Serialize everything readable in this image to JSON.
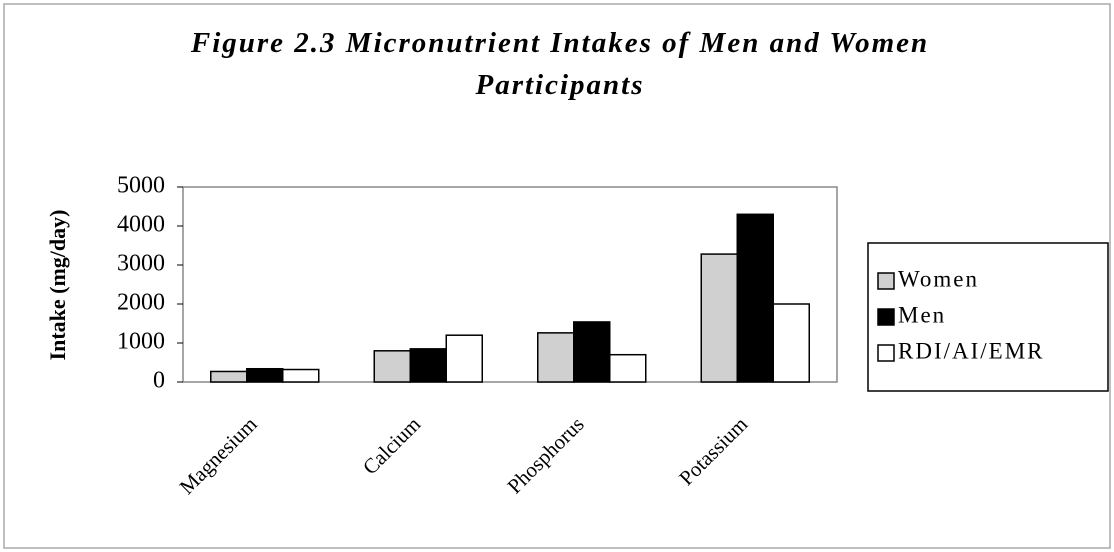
{
  "chart_data": {
    "type": "bar",
    "title": "Figure 2.3 Micronutrient Intakes of Men and Women Participants",
    "y_label": "Intake (mg/day)",
    "categories": [
      "Magnesium",
      "Calcium",
      "Phosphorus",
      "Potassium"
    ],
    "series": [
      {
        "name": "Women",
        "color": "#d0d0d0",
        "values": [
          270,
          800,
          1260,
          3280
        ]
      },
      {
        "name": "Men",
        "color": "#000000",
        "values": [
          340,
          850,
          1540,
          4300
        ]
      },
      {
        "name": "RDI/AI/EMR",
        "color": "#ffffff",
        "values": [
          320,
          1200,
          700,
          2000
        ]
      }
    ],
    "ylim": [
      0,
      5000
    ],
    "yticks": [
      0,
      1000,
      2000,
      3000,
      4000,
      5000
    ],
    "grid": false,
    "legend": "right"
  }
}
